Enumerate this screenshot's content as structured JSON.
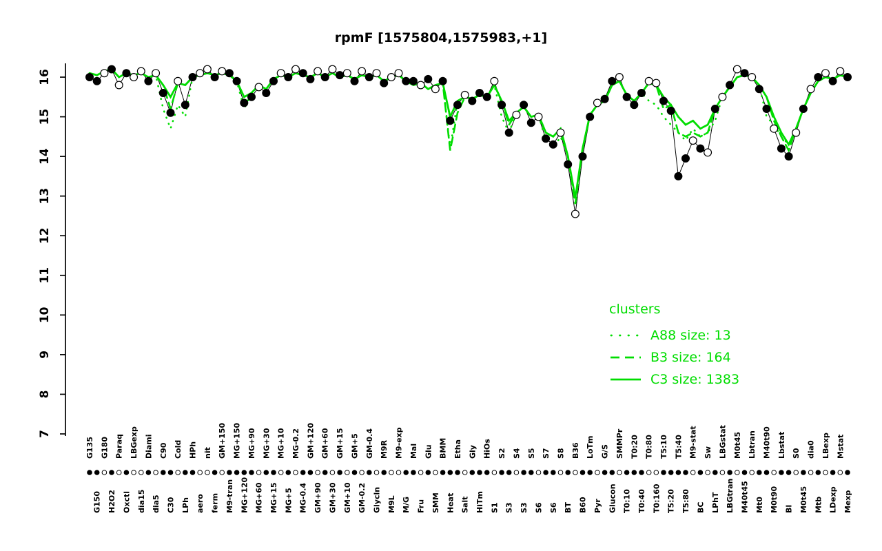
{
  "chart_data": {
    "type": "line",
    "title": "rpmF [1575804,1575983,+1]",
    "xlabel": "",
    "ylabel": "",
    "ylim": [
      7,
      16.4
    ],
    "y_ticks": [
      7,
      8,
      9,
      10,
      11,
      12,
      13,
      14,
      15,
      16
    ],
    "grid": false,
    "colors": {
      "cluster": "#00dd00",
      "line": "#000000",
      "points_filled": "#000000",
      "points_open": "#ffffff",
      "axis": "#000000"
    },
    "legend": {
      "title": "clusters",
      "position": "right-middle",
      "entries": [
        {
          "label": "A88 size: 13",
          "style": "dotted"
        },
        {
          "label": "B3 size: 164",
          "style": "dashed"
        },
        {
          "label": "C3 size: 1383",
          "style": "solid"
        }
      ]
    },
    "categories": [
      "G135",
      "G150",
      "G180",
      "H2O2",
      "Paraq",
      "Oxctl",
      "LBGexp",
      "dia15",
      "Diami",
      "dia5",
      "C90",
      "C30",
      "Cold",
      "LPh",
      "HPh",
      "aero",
      "nit",
      "ferm",
      "GM+150",
      "M9-tran",
      "MG+150",
      "MG+120",
      "MG+90",
      "MG+60",
      "MG+30",
      "MG+15",
      "MG+10",
      "MG+5",
      "MG-0.2",
      "MG-0.4",
      "GM+120",
      "GM+90",
      "GM+60",
      "GM+30",
      "GM+15",
      "GM+10",
      "GM+5",
      "GM-0.2",
      "GM-0.4",
      "Glycln",
      "M9R",
      "M9L",
      "M9-exp",
      "M/G",
      "Mal",
      "Fru",
      "Glu",
      "SMM",
      "BMM",
      "Heat",
      "Etha",
      "Salt",
      "Gly",
      "HiTm",
      "HiOs",
      "S1",
      "S2",
      "S3",
      "S4",
      "S3",
      "S5",
      "S6",
      "S7",
      "S6",
      "S8",
      "BT",
      "B36",
      "B60",
      "LoTm",
      "Pyr",
      "G/S",
      "Glucon",
      "SMMPr",
      "T0:10",
      "T0:20",
      "T0:40",
      "T0:80",
      "T0:160",
      "T5:10",
      "T5:20",
      "T5:40",
      "T5:80",
      "M9-stat",
      "BC",
      "Sw",
      "LPhT",
      "LBGstat",
      "LBGtran",
      "M0t45",
      "M40t45",
      "Lbtran",
      "Mt0",
      "M40t90",
      "M0t90",
      "Lbstat",
      "Bl",
      "S0",
      "M0t45",
      "dia0",
      "Mtb",
      "LBexp",
      "LDexp",
      "Mstat",
      "Mexp"
    ],
    "marker_fill": [
      "filled",
      "filled",
      "open",
      "filled",
      "open",
      "filled",
      "open",
      "open",
      "filled",
      "open",
      "filled",
      "filled",
      "open",
      "filled",
      "filled",
      "open",
      "open",
      "filled",
      "open",
      "filled",
      "filled",
      "filled",
      "filled",
      "open",
      "filled",
      "filled",
      "open",
      "filled",
      "open",
      "filled",
      "filled",
      "open",
      "filled",
      "open",
      "filled",
      "open",
      "filled",
      "open",
      "filled",
      "open",
      "filled",
      "open",
      "open",
      "filled",
      "filled",
      "open",
      "filled",
      "open",
      "filled",
      "filled",
      "filled",
      "open",
      "filled",
      "filled",
      "filled",
      "open",
      "filled",
      "filled",
      "open",
      "filled",
      "filled",
      "open",
      "filled",
      "filled",
      "open",
      "filled",
      "open",
      "filled",
      "filled",
      "open",
      "filled",
      "filled",
      "open",
      "filled",
      "filled",
      "filled",
      "open",
      "open",
      "filled",
      "filled",
      "filled",
      "filled",
      "open",
      "filled",
      "open",
      "filled",
      "open",
      "filled",
      "open",
      "filled",
      "open",
      "filled",
      "filled",
      "open",
      "filled",
      "filled",
      "open",
      "filled",
      "open",
      "filled",
      "open",
      "filled",
      "open",
      "filled"
    ],
    "series": [
      {
        "name": "rpmF",
        "role": "expression",
        "style": "points",
        "color": "#000000",
        "values": [
          16.0,
          15.9,
          16.1,
          16.2,
          15.8,
          16.1,
          16.0,
          16.15,
          15.9,
          16.1,
          15.6,
          15.1,
          15.9,
          15.3,
          16.0,
          16.1,
          16.2,
          16.0,
          16.15,
          16.1,
          15.9,
          15.35,
          15.5,
          15.75,
          15.6,
          15.9,
          16.1,
          16.0,
          16.2,
          16.1,
          15.95,
          16.15,
          16.0,
          16.2,
          16.05,
          16.1,
          15.9,
          16.15,
          16.0,
          16.1,
          15.85,
          16.0,
          16.1,
          15.9,
          15.9,
          15.8,
          15.95,
          15.7,
          15.9,
          14.9,
          15.3,
          15.55,
          15.4,
          15.6,
          15.5,
          15.9,
          15.3,
          14.6,
          15.05,
          15.3,
          14.85,
          15.0,
          14.45,
          14.3,
          14.6,
          13.8,
          12.55,
          14.0,
          15.0,
          15.35,
          15.45,
          15.9,
          16.0,
          15.5,
          15.3,
          15.6,
          15.9,
          15.85,
          15.4,
          15.15,
          13.5,
          13.95,
          14.4,
          14.2,
          14.1,
          15.2,
          15.5,
          15.8,
          16.2,
          16.1,
          16.0,
          15.7,
          15.2,
          14.7,
          14.2,
          14.0,
          14.6,
          15.2,
          15.7,
          16.0,
          16.1,
          15.9,
          16.15,
          16.0
        ]
      },
      {
        "name": "A88",
        "role": "cluster",
        "style": "dotted",
        "color": "#00dd00",
        "values": [
          16.1,
          16.05,
          16.15,
          16.2,
          16.0,
          16.1,
          16.05,
          16.1,
          16.0,
          16.05,
          15.2,
          14.7,
          15.3,
          15.0,
          16.0,
          16.05,
          16.1,
          16.05,
          16.1,
          16.05,
          15.9,
          15.2,
          15.6,
          15.8,
          15.7,
          15.95,
          16.05,
          16.0,
          16.1,
          16.05,
          16.0,
          16.1,
          16.0,
          16.1,
          16.0,
          16.05,
          15.95,
          16.05,
          16.0,
          16.05,
          15.9,
          16.0,
          16.05,
          15.9,
          15.8,
          15.85,
          15.7,
          15.8,
          15.85,
          14.2,
          15.4,
          15.5,
          15.45,
          15.55,
          15.5,
          15.8,
          15.0,
          14.6,
          15.1,
          15.25,
          15.0,
          15.05,
          14.4,
          14.2,
          14.5,
          14.0,
          12.9,
          14.2,
          15.05,
          15.3,
          15.4,
          15.8,
          15.9,
          15.55,
          15.4,
          15.6,
          15.4,
          15.3,
          15.0,
          14.8,
          14.6,
          14.4,
          14.7,
          14.5,
          14.6,
          14.9,
          15.5,
          15.75,
          16.0,
          16.05,
          16.0,
          15.8,
          15.0,
          14.8,
          14.5,
          14.3,
          14.7,
          15.2,
          15.6,
          15.9,
          16.0,
          15.95,
          16.05,
          16.0
        ]
      },
      {
        "name": "B3",
        "role": "cluster",
        "style": "dashed",
        "color": "#00dd00",
        "values": [
          16.1,
          16.05,
          16.15,
          16.2,
          16.0,
          16.1,
          16.05,
          16.1,
          16.0,
          16.05,
          15.8,
          15.2,
          15.85,
          15.8,
          16.0,
          16.05,
          16.1,
          16.05,
          16.1,
          16.05,
          15.9,
          15.5,
          15.6,
          15.8,
          15.7,
          15.95,
          16.05,
          16.0,
          16.1,
          16.05,
          16.0,
          16.1,
          16.0,
          16.1,
          16.0,
          16.05,
          15.95,
          16.05,
          16.0,
          16.05,
          15.9,
          16.0,
          16.05,
          15.9,
          15.8,
          15.85,
          15.7,
          15.8,
          15.85,
          14.15,
          15.1,
          15.5,
          15.45,
          15.55,
          15.5,
          15.8,
          15.4,
          14.8,
          15.1,
          15.25,
          15.0,
          15.05,
          14.6,
          14.5,
          14.7,
          14.0,
          12.8,
          14.2,
          15.05,
          15.3,
          15.4,
          15.8,
          15.9,
          15.55,
          15.4,
          15.6,
          15.85,
          15.8,
          15.2,
          15.3,
          14.6,
          14.5,
          14.6,
          14.5,
          14.6,
          15.2,
          15.5,
          15.75,
          16.0,
          16.05,
          16.0,
          15.8,
          15.5,
          14.9,
          14.5,
          14.15,
          14.7,
          15.2,
          15.6,
          15.9,
          16.0,
          15.95,
          16.05,
          16.0
        ]
      },
      {
        "name": "C3",
        "role": "cluster",
        "style": "solid",
        "color": "#00dd00",
        "values": [
          16.1,
          16.05,
          16.15,
          16.2,
          16.0,
          16.1,
          16.05,
          16.1,
          16.0,
          16.05,
          15.8,
          15.5,
          15.85,
          15.8,
          16.0,
          16.05,
          16.1,
          16.05,
          16.1,
          16.05,
          15.9,
          15.5,
          15.6,
          15.8,
          15.7,
          15.95,
          16.05,
          16.0,
          16.1,
          16.05,
          16.0,
          16.1,
          16.0,
          16.1,
          16.0,
          16.05,
          15.95,
          16.05,
          16.0,
          16.05,
          15.9,
          16.0,
          16.05,
          15.9,
          15.8,
          15.85,
          15.7,
          15.8,
          15.85,
          15.0,
          15.4,
          15.5,
          15.45,
          15.55,
          15.5,
          15.8,
          15.4,
          14.9,
          15.1,
          15.25,
          15.0,
          15.05,
          14.6,
          14.5,
          14.7,
          14.0,
          12.95,
          14.2,
          15.05,
          15.3,
          15.4,
          15.8,
          15.9,
          15.55,
          15.4,
          15.6,
          15.85,
          15.8,
          15.5,
          15.3,
          15.0,
          14.8,
          14.9,
          14.7,
          14.8,
          15.2,
          15.5,
          15.75,
          16.0,
          16.05,
          16.0,
          15.8,
          15.5,
          15.0,
          14.6,
          14.3,
          14.7,
          15.2,
          15.6,
          15.9,
          16.0,
          15.95,
          16.05,
          16.0
        ]
      }
    ]
  }
}
